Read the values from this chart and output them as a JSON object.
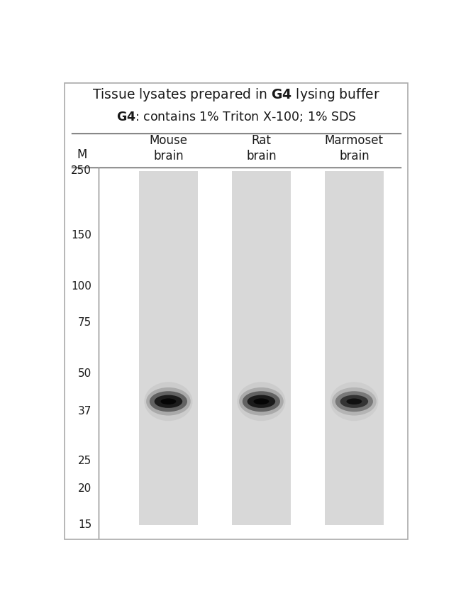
{
  "title_line1": "Tissue lysates prepared in $\\mathbf{G4}$ lysing buffer",
  "subtitle": "$\\mathbf{G4}$: contains 1% Triton X-100; 1% SDS",
  "column_labels": [
    "Mouse\nbrain",
    "Rat\nbrain",
    "Marmoset\nbrain"
  ],
  "marker_label": "M",
  "mw_markers": [
    250,
    150,
    100,
    75,
    50,
    37,
    25,
    20,
    15
  ],
  "band_mw": 40,
  "lane_color": "#d8d8d8",
  "background_color": "#ffffff",
  "border_color": "#aaaaaa",
  "figure_width": 6.5,
  "figure_height": 8.61,
  "band_intensities": [
    1.0,
    1.0,
    0.75
  ]
}
